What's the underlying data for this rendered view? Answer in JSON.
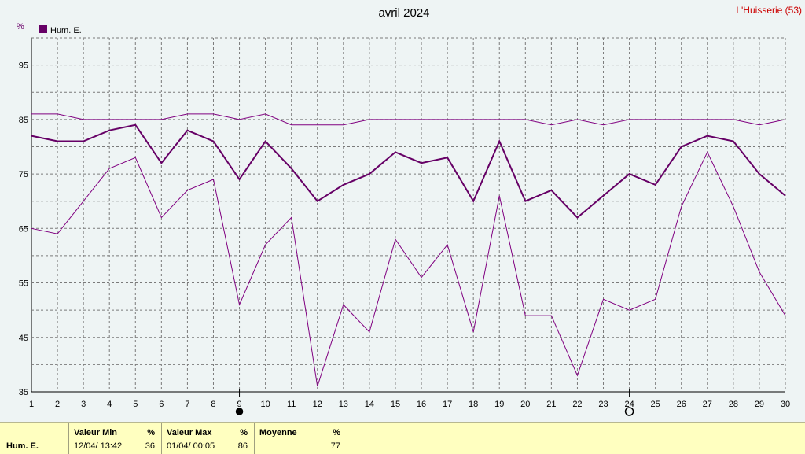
{
  "title": "avril 2024",
  "station": "L'Huisserie (53)",
  "unit": "%",
  "legend": {
    "label": "Hum. E.",
    "color": "#660066"
  },
  "chart_data": {
    "type": "line",
    "x": [
      1,
      2,
      3,
      4,
      5,
      6,
      7,
      8,
      9,
      10,
      11,
      12,
      13,
      14,
      15,
      16,
      17,
      18,
      19,
      20,
      21,
      22,
      23,
      24,
      25,
      26,
      27,
      28,
      29,
      30
    ],
    "ylim": [
      35,
      100
    ],
    "yticks": [
      35,
      45,
      55,
      65,
      75,
      85,
      95
    ],
    "xticks": [
      1,
      2,
      3,
      4,
      5,
      6,
      7,
      8,
      9,
      10,
      11,
      12,
      13,
      14,
      15,
      16,
      17,
      18,
      19,
      20,
      21,
      22,
      23,
      24,
      25,
      26,
      27,
      28,
      29,
      30
    ],
    "grid": true,
    "legend_position": "top-left",
    "series": [
      {
        "name": "Hum. E.",
        "role": "max",
        "color": "#800080",
        "values": [
          86,
          86,
          85,
          85,
          85,
          85,
          86,
          86,
          85,
          86,
          84,
          84,
          84,
          85,
          85,
          85,
          85,
          85,
          85,
          85,
          84,
          85,
          84,
          85,
          85,
          85,
          85,
          85,
          84,
          85
        ]
      },
      {
        "name": "Hum. E.",
        "role": "mean",
        "color": "#660066",
        "values": [
          82,
          81,
          81,
          83,
          84,
          77,
          83,
          81,
          74,
          81,
          76,
          70,
          73,
          75,
          79,
          77,
          78,
          70,
          81,
          70,
          72,
          67,
          71,
          75,
          73,
          80,
          82,
          81,
          75,
          71
        ]
      },
      {
        "name": "Hum. E.",
        "role": "min",
        "color": "#800080",
        "values": [
          65,
          64,
          70,
          76,
          78,
          67,
          72,
          74,
          51,
          62,
          67,
          36,
          51,
          46,
          63,
          56,
          62,
          46,
          71,
          49,
          49,
          38,
          52,
          50,
          52,
          69,
          79,
          69,
          57,
          49
        ]
      }
    ],
    "markers": [
      {
        "day": 9,
        "symbol": "new-moon"
      },
      {
        "day": 24,
        "symbol": "full-moon"
      }
    ]
  },
  "stats": {
    "row_label": "Hum. E.",
    "min_header": "Valeur Min",
    "min_unit": "%",
    "min_date": "12/04/  13:42",
    "min_value": "36",
    "max_header": "Valeur Max",
    "max_unit": "%",
    "max_date": "01/04/  00:05",
    "max_value": "86",
    "mean_header": "Moyenne",
    "mean_unit": "%",
    "mean_value": "77"
  }
}
